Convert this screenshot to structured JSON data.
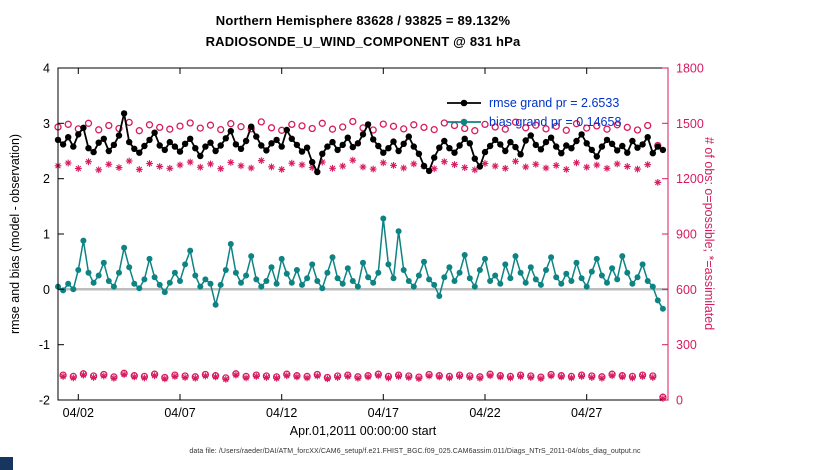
{
  "title": {
    "line1": "Northern Hemisphere 83628 / 93825 = 89.132%",
    "line2": "RADIOSONDE_U_WIND_COMPONENT @ 831 hPa"
  },
  "legend": [
    {
      "series": "rmse",
      "label": "rmse grand pr = 2.6533",
      "color": "#000000"
    },
    {
      "series": "bias",
      "label": "bias grand pr = 0.14658",
      "color": "#0e8383"
    }
  ],
  "axes": {
    "left": {
      "label": "rmse and bias (model - observation)",
      "ticks": [
        -2,
        -1,
        0,
        1,
        2,
        3,
        4
      ],
      "range": [
        -2,
        4
      ]
    },
    "right": {
      "label": "# of obs: o=possible; *=assimilated",
      "ticks": [
        0,
        300,
        600,
        900,
        1200,
        1500,
        1800
      ],
      "range": [
        0,
        1800
      ]
    },
    "x": {
      "tick_labels": [
        "04/02",
        "04/07",
        "04/12",
        "04/17",
        "04/22",
        "04/27"
      ],
      "tick_days": [
        1,
        6,
        11,
        16,
        21,
        26
      ],
      "range_days": [
        0,
        30
      ],
      "label": "Apr.01,2011 00:00:00 start"
    }
  },
  "footer": "data file: /Users/raeder/DAI/ATM_forcXX/CAM6_setup/f.e21.FHIST_BGC.f09_025.CAM6assim.011/Diags_NTrS_2011-04/obs_diag_output.nc",
  "colors": {
    "rmse": "#000000",
    "bias": "#0e8383",
    "obs": "#d81b60",
    "legend_text": "#0033cc",
    "zero_line": "#bdbdbd"
  },
  "chart_data": {
    "type": "line",
    "title": "RADIOSONDE_U_WIND_COMPONENT @ 831 hPa",
    "x_start_day": 0,
    "x_step_days": 0.25,
    "rmse_grand": 2.6533,
    "bias_grand": 0.14658,
    "series": [
      {
        "name": "obs_possible",
        "axis": "right",
        "marker": "open-circle",
        "marker_size": 3.0,
        "line": false,
        "color": "#d81b60",
        "values": [
          1480,
          135,
          1495,
          128,
          1470,
          142,
          1500,
          130,
          1465,
          138,
          1488,
          125,
          1472,
          145,
          1505,
          132,
          1460,
          128,
          1492,
          140,
          1478,
          122,
          1468,
          135,
          1485,
          130,
          1502,
          126,
          1474,
          138,
          1490,
          132,
          1466,
          120,
          1498,
          142,
          1482,
          128,
          1470,
          135,
          1508,
          130,
          1476,
          125,
          1462,
          140,
          1494,
          132,
          1486,
          128,
          1472,
          138,
          1500,
          122,
          1468,
          130,
          1480,
          135,
          1510,
          126,
          1475,
          132,
          1464,
          140,
          1496,
          128,
          1484,
          135,
          1470,
          130,
          1492,
          124,
          1478,
          138,
          1466,
          132,
          1502,
          128,
          1488,
          135,
          1472,
          130,
          1460,
          126,
          1494,
          140,
          1480,
          132,
          1468,
          128,
          1506,
          135,
          1476,
          130,
          1490,
          124,
          1470,
          138,
          1484,
          132,
          1462,
          128,
          1498,
          135,
          1474,
          130,
          1486,
          126,
          1468,
          140,
          1492,
          132,
          1478,
          128,
          1464,
          135,
          1488,
          130,
          1380,
          15
        ]
      },
      {
        "name": "obs_assimilated",
        "axis": "right",
        "marker": "asterisk",
        "marker_size": 3.4,
        "line": false,
        "color": "#d81b60",
        "values": [
          1270,
          128,
          1285,
          120,
          1255,
          135,
          1292,
          122,
          1248,
          130,
          1278,
          118,
          1260,
          138,
          1296,
          125,
          1250,
          120,
          1282,
          132,
          1266,
          115,
          1256,
          128,
          1274,
          122,
          1290,
          118,
          1262,
          130,
          1280,
          125,
          1254,
          112,
          1288,
          135,
          1270,
          120,
          1258,
          128,
          1298,
          122,
          1264,
          118,
          1250,
          132,
          1284,
          125,
          1275,
          120,
          1260,
          130,
          1290,
          115,
          1256,
          122,
          1268,
          128,
          1300,
          118,
          1263,
          125,
          1252,
          132,
          1286,
          120,
          1272,
          128,
          1258,
          122,
          1280,
          116,
          1266,
          130,
          1254,
          125,
          1292,
          120,
          1276,
          128,
          1260,
          122,
          1248,
          118,
          1282,
          132,
          1268,
          125,
          1256,
          120,
          1294,
          128,
          1264,
          122,
          1278,
          116,
          1258,
          130,
          1272,
          125,
          1250,
          120,
          1286,
          128,
          1262,
          122,
          1274,
          118,
          1256,
          132,
          1280,
          125,
          1266,
          120,
          1252,
          128,
          1276,
          122,
          1180,
          8
        ]
      },
      {
        "name": "bias",
        "axis": "left",
        "marker": "filled-circle",
        "marker_size": 3.0,
        "line": true,
        "line_width": 1.5,
        "color": "#0e8383",
        "values": [
          0.05,
          -0.02,
          0.1,
          0.0,
          0.35,
          0.88,
          0.3,
          0.12,
          0.25,
          0.48,
          0.15,
          0.05,
          0.3,
          0.75,
          0.4,
          0.1,
          0.02,
          0.18,
          0.55,
          0.22,
          0.08,
          -0.05,
          0.12,
          0.3,
          0.15,
          0.45,
          0.7,
          0.25,
          0.05,
          0.18,
          0.1,
          -0.28,
          0.08,
          0.35,
          0.82,
          0.3,
          0.12,
          0.25,
          0.6,
          0.18,
          0.05,
          0.15,
          0.4,
          0.1,
          0.55,
          0.28,
          0.12,
          0.35,
          0.08,
          0.2,
          0.45,
          0.15,
          0.02,
          0.3,
          0.58,
          0.2,
          0.1,
          0.38,
          0.15,
          0.05,
          0.48,
          0.22,
          0.12,
          0.3,
          1.28,
          0.45,
          0.2,
          1.05,
          0.35,
          0.15,
          0.05,
          0.25,
          0.5,
          0.18,
          0.08,
          -0.12,
          0.22,
          0.4,
          0.15,
          0.3,
          0.62,
          0.2,
          0.05,
          0.35,
          0.55,
          0.15,
          0.25,
          0.1,
          0.45,
          0.2,
          0.6,
          0.3,
          0.12,
          0.4,
          0.18,
          0.08,
          0.35,
          0.58,
          0.22,
          0.1,
          0.28,
          0.15,
          0.48,
          0.2,
          0.05,
          0.32,
          0.55,
          0.25,
          0.12,
          0.38,
          0.18,
          0.6,
          0.3,
          0.1,
          0.22,
          0.45,
          0.15,
          0.05,
          -0.2,
          -0.35
        ]
      },
      {
        "name": "rmse",
        "axis": "left",
        "marker": "filled-circle",
        "marker_size": 3.2,
        "line": true,
        "line_width": 1.8,
        "color": "#000000",
        "values": [
          2.7,
          2.62,
          2.75,
          2.58,
          2.8,
          2.92,
          2.55,
          2.48,
          2.65,
          2.72,
          2.5,
          2.61,
          2.78,
          3.18,
          2.66,
          2.54,
          2.47,
          2.59,
          2.7,
          2.83,
          2.6,
          2.52,
          2.66,
          2.58,
          2.49,
          2.63,
          2.72,
          2.55,
          2.41,
          2.58,
          2.65,
          2.5,
          2.6,
          2.73,
          2.86,
          2.62,
          2.54,
          2.68,
          2.94,
          2.76,
          2.6,
          2.51,
          2.64,
          2.7,
          2.58,
          2.88,
          2.72,
          2.61,
          2.49,
          2.56,
          2.3,
          2.12,
          2.45,
          2.58,
          2.66,
          2.52,
          2.61,
          2.74,
          2.57,
          2.64,
          2.8,
          2.98,
          2.71,
          2.59,
          2.47,
          2.55,
          2.67,
          2.5,
          2.63,
          2.76,
          2.58,
          2.45,
          2.23,
          2.14,
          2.38,
          2.56,
          2.68,
          2.55,
          2.47,
          2.6,
          2.72,
          2.64,
          2.36,
          2.22,
          2.48,
          2.59,
          2.7,
          2.62,
          2.5,
          2.66,
          2.57,
          2.44,
          2.69,
          2.78,
          2.61,
          2.53,
          2.66,
          2.74,
          2.58,
          2.46,
          2.6,
          2.55,
          2.68,
          2.8,
          2.64,
          2.52,
          2.4,
          2.58,
          2.7,
          2.63,
          2.51,
          2.59,
          2.47,
          2.68,
          2.56,
          2.62,
          2.75,
          2.46,
          2.58,
          2.52
        ]
      }
    ]
  }
}
